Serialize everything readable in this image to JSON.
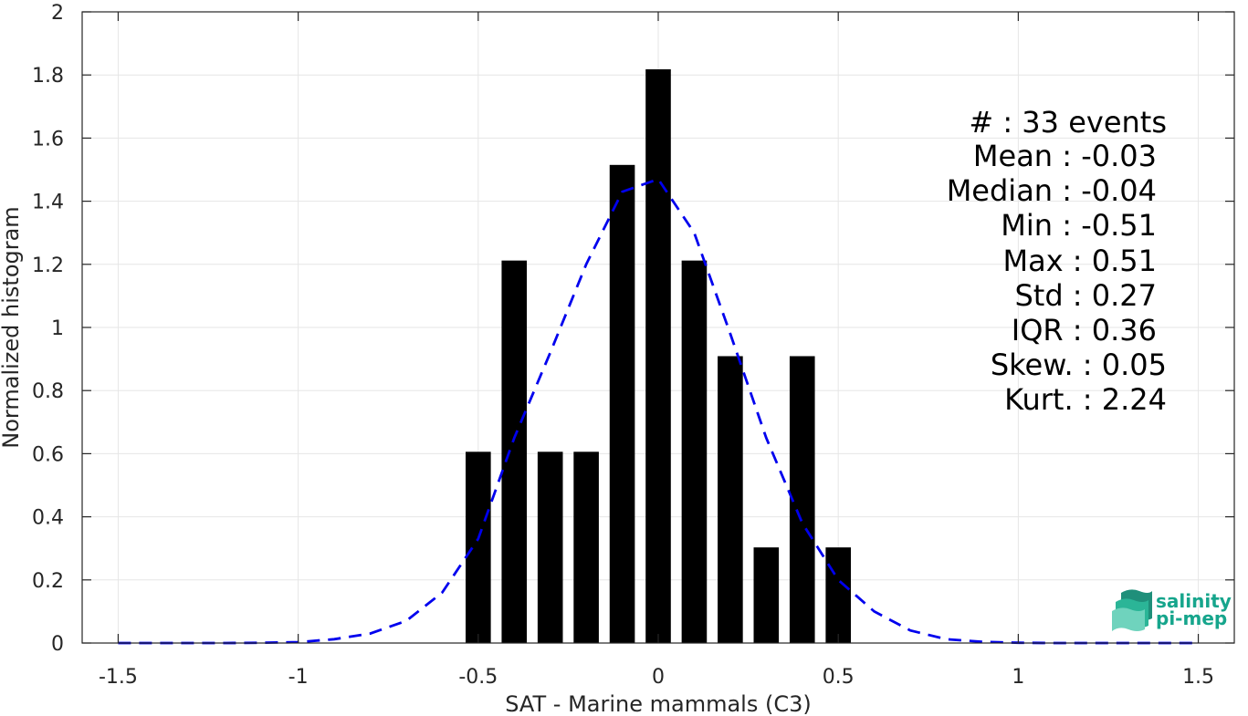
{
  "chart_data": {
    "type": "bar",
    "xlabel": "SAT - Marine mammals (C3)",
    "ylabel": "Normalized histogram",
    "xlim": [
      -1.6,
      1.6
    ],
    "ylim": [
      0,
      2
    ],
    "grid": true,
    "x_ticks": [
      "-1.5",
      "-1",
      "-0.5",
      "0",
      "0.5",
      "1",
      "1.5"
    ],
    "y_ticks": [
      "0",
      "0.2",
      "0.4",
      "0.6",
      "0.8",
      "1",
      "1.2",
      "1.4",
      "1.6",
      "1.8",
      "2"
    ],
    "bar_width": 0.07,
    "bar_color": "#000000",
    "bins": [
      {
        "x": -0.5,
        "value": 0.606
      },
      {
        "x": -0.4,
        "value": 1.212
      },
      {
        "x": -0.3,
        "value": 0.606
      },
      {
        "x": -0.2,
        "value": 0.606
      },
      {
        "x": -0.1,
        "value": 1.515
      },
      {
        "x": 0.0,
        "value": 1.818
      },
      {
        "x": 0.1,
        "value": 1.212
      },
      {
        "x": 0.2,
        "value": 0.909
      },
      {
        "x": 0.3,
        "value": 0.303
      },
      {
        "x": 0.4,
        "value": 0.909
      },
      {
        "x": 0.5,
        "value": 0.303
      }
    ],
    "fit_curve": {
      "style": "dashed",
      "color": "#0000ee",
      "x": [
        -1.5,
        -1.4,
        -1.3,
        -1.2,
        -1.1,
        -1.0,
        -0.9,
        -0.8,
        -0.7,
        -0.6,
        -0.5,
        -0.4,
        -0.3,
        -0.2,
        -0.1,
        0.0,
        0.1,
        0.2,
        0.3,
        0.4,
        0.5,
        0.6,
        0.7,
        0.8,
        0.9,
        1.0,
        1.1,
        1.2,
        1.3,
        1.4,
        1.5
      ],
      "y": [
        0,
        0,
        0,
        0,
        0.001,
        0.003,
        0.012,
        0.03,
        0.07,
        0.16,
        0.33,
        0.65,
        0.92,
        1.2,
        1.43,
        1.47,
        1.3,
        0.98,
        0.65,
        0.38,
        0.2,
        0.1,
        0.04,
        0.012,
        0.004,
        0.001,
        0,
        0,
        0,
        0,
        0
      ]
    }
  },
  "stats": [
    "#  : 33 events",
    "Mean : -0.03",
    "Median : -0.04",
    "Min : -0.51",
    "Max : 0.51",
    "Std : 0.27",
    "IQR : 0.36",
    "Skew. : 0.05",
    "Kurt. : 2.24"
  ],
  "logo": {
    "line1": "salinity",
    "line2": "pi-mep",
    "color": "#16a58c"
  }
}
